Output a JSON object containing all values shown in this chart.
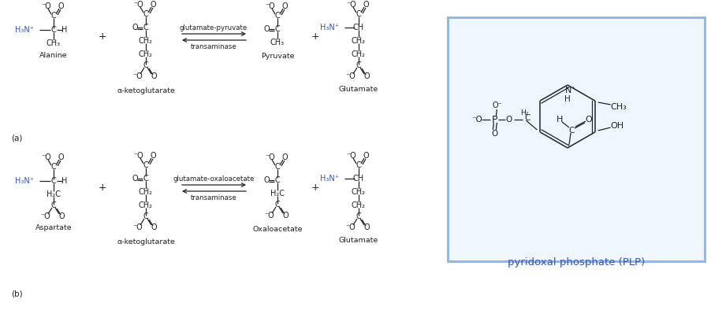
{
  "bg_color": "#ffffff",
  "blue_color": "#3355bb",
  "black_color": "#222222",
  "box_edge_color": "#88bbee",
  "box_face_color": "#f0f6ff",
  "title_a": "(a)",
  "title_b": "(b)",
  "arrow_label_a1": "glutamate-pyruvate",
  "arrow_label_a2": "transaminase",
  "arrow_label_b1": "glutamate-oxaloacetate",
  "arrow_label_b2": "transaminase",
  "label_alanine": "Alanine",
  "label_akg": "α-ketoglutarate",
  "label_pyruvate": "Pyruvate",
  "label_glutamate": "Glutamate",
  "label_aspartate": "Aspartate",
  "label_oxaloacetate": "Oxaloacetate",
  "label_plp": "pyridoxal phosphate (PLP)",
  "fig_width": 9.02,
  "fig_height": 3.94,
  "dpi": 100
}
